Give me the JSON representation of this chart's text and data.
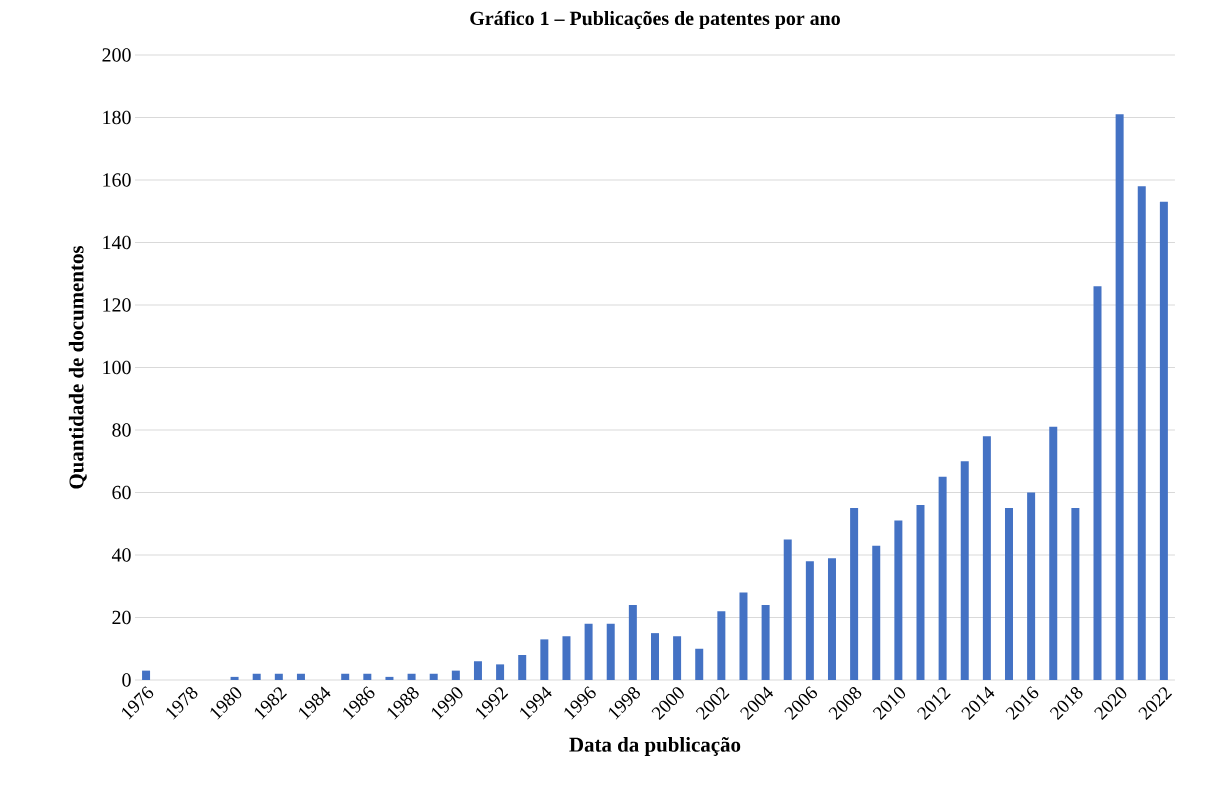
{
  "chart_data": {
    "type": "bar",
    "title": "Gráfico 1 – Publicações de patentes por ano",
    "xlabel": "Data da publicação",
    "ylabel": "Quantidade de documentos",
    "categories": [
      "1976",
      null,
      "1978",
      null,
      "1980",
      null,
      "1982",
      null,
      "1984",
      null,
      "1986",
      null,
      "1988",
      null,
      "1990",
      null,
      "1992",
      null,
      "1994",
      null,
      "1996",
      null,
      "1998",
      null,
      "2000",
      null,
      "2002",
      null,
      "2004",
      null,
      "2006",
      null,
      "2008",
      null,
      "2010",
      null,
      "2012",
      null,
      "2014",
      null,
      "2016",
      null,
      "2018",
      null,
      "2020",
      null,
      "2022"
    ],
    "values": [
      3,
      0,
      0,
      0,
      1,
      2,
      2,
      2,
      0,
      2,
      2,
      1,
      2,
      2,
      3,
      6,
      5,
      8,
      13,
      14,
      18,
      18,
      24,
      15,
      14,
      10,
      22,
      28,
      24,
      45,
      38,
      39,
      55,
      43,
      51,
      56,
      65,
      70,
      78,
      55,
      60,
      81,
      55,
      126,
      181,
      158,
      153
    ],
    "color": "#4472c4",
    "ylim": [
      0,
      200
    ],
    "yticks": [
      0,
      20,
      40,
      60,
      80,
      100,
      120,
      140,
      160,
      180,
      200
    ],
    "grid": "y"
  }
}
